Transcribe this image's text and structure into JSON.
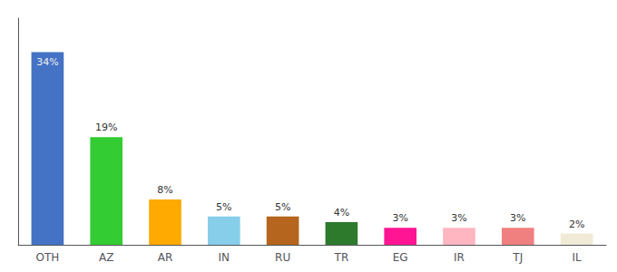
{
  "chart_data": {
    "type": "bar",
    "categories": [
      "OTH",
      "AZ",
      "AR",
      "IN",
      "RU",
      "TR",
      "EG",
      "IR",
      "TJ",
      "IL"
    ],
    "values": [
      34,
      19,
      8,
      5,
      5,
      4,
      3,
      3,
      3,
      2
    ],
    "value_labels": [
      "34%",
      "19%",
      "8%",
      "5%",
      "5%",
      "4%",
      "3%",
      "3%",
      "3%",
      "2%"
    ],
    "colors": [
      "#4472c4",
      "#33cc33",
      "#ffaa00",
      "#87ceeb",
      "#b5651d",
      "#2d7a2d",
      "#ff1493",
      "#ffb6c1",
      "#f08080",
      "#f0ead6"
    ],
    "ylim": [
      0,
      40
    ],
    "grid": false,
    "data_labels": true,
    "tick_labels": "x"
  }
}
